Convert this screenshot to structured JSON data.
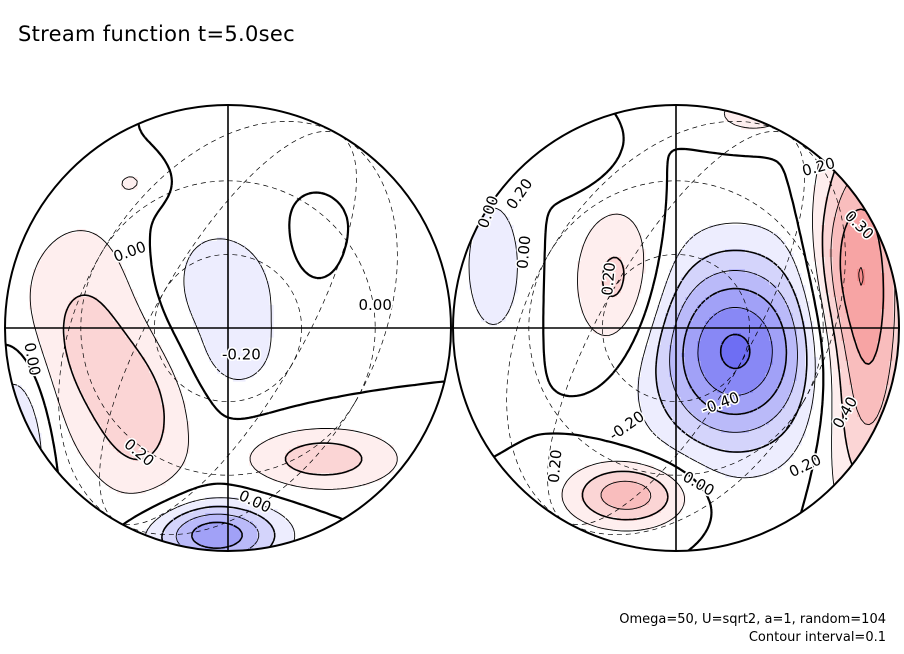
{
  "title": "Stream function t=5.0sec",
  "footer": {
    "line1": "Omega=50, U=sqrt2, a=1, random=104",
    "line2": "Contour interval=0.1"
  },
  "chart_data": {
    "type": "contour",
    "title": "Stream function t=5.0sec",
    "projection": "orthographic, two hemispheres",
    "contour_interval": 0.1,
    "colors": {
      "positive": "#f05050",
      "negative": "#4a4af0",
      "zero_line": "#000000"
    },
    "panels": [
      {
        "name": "left",
        "labels": [
          {
            "text": "0.00",
            "x": 0.28,
            "y": 0.33,
            "angle": -20
          },
          {
            "text": "0.00",
            "x": 0.83,
            "y": 0.45,
            "angle": 0
          },
          {
            "text": "-0.20",
            "x": 0.53,
            "y": 0.56,
            "angle": 0
          },
          {
            "text": "0.00",
            "x": 0.06,
            "y": 0.57,
            "angle": 80
          },
          {
            "text": "0.20",
            "x": 0.3,
            "y": 0.78,
            "angle": 40
          },
          {
            "text": "0.00",
            "x": 0.56,
            "y": 0.89,
            "angle": 25
          }
        ],
        "features": [
          {
            "sign": 1,
            "x": 0.19,
            "y": 0.5,
            "sx": 0.12,
            "sy": 0.18,
            "amp": 0.24
          },
          {
            "sign": 1,
            "x": 0.31,
            "y": 0.7,
            "sx": 0.08,
            "sy": 0.14,
            "amp": 0.2
          },
          {
            "sign": 1,
            "x": 0.71,
            "y": 0.79,
            "sx": 0.12,
            "sy": 0.05,
            "amp": 0.26
          },
          {
            "sign": 1,
            "x": 0.29,
            "y": 0.17,
            "sx": 0.05,
            "sy": 0.04,
            "amp": 0.09
          },
          {
            "sign": 1,
            "x": 0.68,
            "y": 0.3,
            "sx": 0.04,
            "sy": 0.07,
            "amp": 0.08
          },
          {
            "sign": -1,
            "x": 0.45,
            "y": 0.43,
            "sx": 0.14,
            "sy": 0.14,
            "amp": 0.17
          },
          {
            "sign": -1,
            "x": 0.52,
            "y": 0.56,
            "sx": 0.05,
            "sy": 0.05,
            "amp": 0.08
          },
          {
            "sign": -1,
            "x": 0.47,
            "y": 0.96,
            "sx": 0.1,
            "sy": 0.05,
            "amp": 0.48
          },
          {
            "sign": -1,
            "x": 0.03,
            "y": 0.75,
            "sx": 0.05,
            "sy": 0.14,
            "amp": 0.26
          },
          {
            "sign": -1,
            "x": 0.58,
            "y": 0.1,
            "sx": 0.13,
            "sy": 0.06,
            "amp": 0.08
          }
        ]
      },
      {
        "name": "right",
        "labels": [
          {
            "text": "0.00",
            "x": 0.08,
            "y": 0.24,
            "angle": -70
          },
          {
            "text": "0.20",
            "x": 0.15,
            "y": 0.2,
            "angle": -55
          },
          {
            "text": "0.00",
            "x": 0.16,
            "y": 0.33,
            "angle": -85
          },
          {
            "text": "0.20",
            "x": 0.35,
            "y": 0.39,
            "angle": -85
          },
          {
            "text": "-0.40",
            "x": 0.6,
            "y": 0.67,
            "angle": -20
          },
          {
            "text": "-0.20",
            "x": 0.39,
            "y": 0.72,
            "angle": -35
          },
          {
            "text": "0.00",
            "x": 0.55,
            "y": 0.85,
            "angle": 30
          },
          {
            "text": "0.20",
            "x": 0.23,
            "y": 0.81,
            "angle": -85
          },
          {
            "text": "0.20",
            "x": 0.82,
            "y": 0.14,
            "angle": -15
          },
          {
            "text": "0.30",
            "x": 0.91,
            "y": 0.27,
            "angle": 45
          },
          {
            "text": "0.40",
            "x": 0.88,
            "y": 0.69,
            "angle": -60
          },
          {
            "text": "0.20",
            "x": 0.79,
            "y": 0.81,
            "angle": -25
          }
        ],
        "features": [
          {
            "sign": 1,
            "x": 0.92,
            "y": 0.45,
            "sx": 0.07,
            "sy": 0.3,
            "amp": 0.48
          },
          {
            "sign": 1,
            "x": 0.86,
            "y": 0.36,
            "sx": 0.05,
            "sy": 0.12,
            "amp": 0.12
          },
          {
            "sign": 1,
            "x": 0.37,
            "y": 0.4,
            "sx": 0.07,
            "sy": 0.12,
            "amp": 0.26
          },
          {
            "sign": 1,
            "x": 0.39,
            "y": 0.87,
            "sx": 0.09,
            "sy": 0.05,
            "amp": 0.38
          },
          {
            "sign": 1,
            "x": 0.67,
            "y": 0.02,
            "sx": 0.08,
            "sy": 0.04,
            "amp": 0.14
          },
          {
            "sign": -1,
            "x": 0.63,
            "y": 0.55,
            "sx": 0.13,
            "sy": 0.15,
            "amp": 0.62
          },
          {
            "sign": -1,
            "x": 0.09,
            "y": 0.36,
            "sx": 0.05,
            "sy": 0.12,
            "amp": 0.18
          },
          {
            "sign": -1,
            "x": 0.27,
            "y": 0.13,
            "sx": 0.06,
            "sy": 0.05,
            "amp": 0.06
          }
        ]
      }
    ]
  }
}
